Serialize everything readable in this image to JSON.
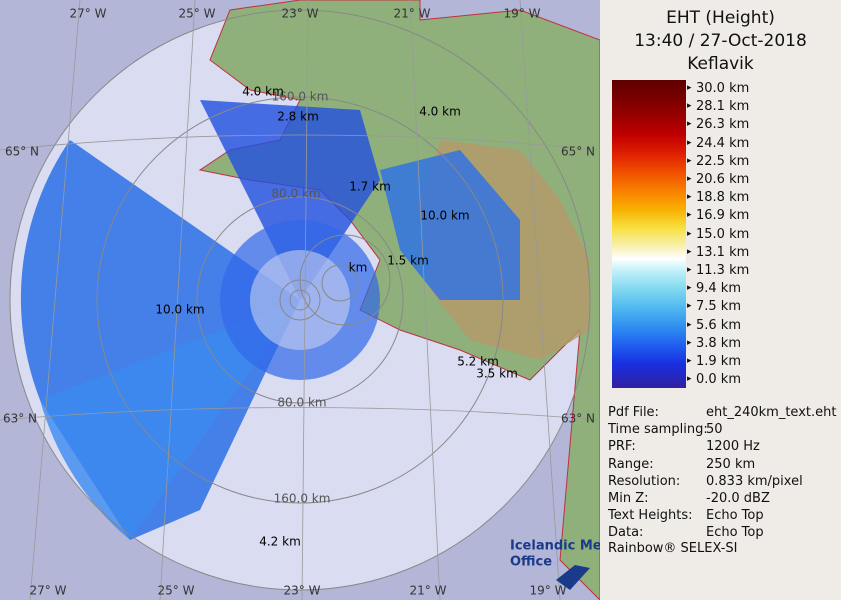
{
  "title": [
    "EHT (Height)",
    "13:40 / 27-Oct-2018",
    "Keflavik"
  ],
  "legend": {
    "labels": [
      "30.0 km",
      "28.1 km",
      "26.3 km",
      "24.4 km",
      "22.5 km",
      "20.6 km",
      "18.8 km",
      "16.9 km",
      "15.0 km",
      "13.1 km",
      "11.3 km",
      "9.4 km",
      "7.5 km",
      "5.6 km",
      "3.8 km",
      "1.9 km",
      "0.0 km"
    ]
  },
  "info": {
    "rows": [
      [
        "Pdf File:",
        "eht_240km_text.eht"
      ],
      [
        "Time sampling:",
        "50"
      ],
      [
        "PRF:",
        "1200 Hz"
      ],
      [
        "Range:",
        "250 km"
      ],
      [
        "Resolution:",
        "0.833 km/pixel"
      ],
      [
        "Min Z:",
        "-20.0 dBZ"
      ],
      [
        "Text Heights:",
        "Echo Top"
      ],
      [
        "Data:",
        "Echo Top"
      ]
    ],
    "footer": "Rainbow® SELEX-SI"
  },
  "logo": [
    "Icelandic Met",
    "Office"
  ],
  "map": {
    "grid_labels": [
      "27° W",
      "25° W",
      "23° W",
      "21° W",
      "19° W",
      "27° W",
      "25° W",
      "23° W",
      "21° W",
      "19° W",
      "65° N",
      "63° N",
      "65° N",
      "63° N"
    ],
    "range_labels": [
      "160.0 km",
      "80.0 km",
      "80.0 km",
      "160.0 km"
    ],
    "height_labels": [
      "4.0 km",
      "2.8 km",
      "4.0 km",
      "1.7 km",
      "10.0 km",
      "1.5 km",
      "km",
      "10.0 km",
      "5.2 km",
      "3.5 km",
      "4.2 km"
    ]
  }
}
